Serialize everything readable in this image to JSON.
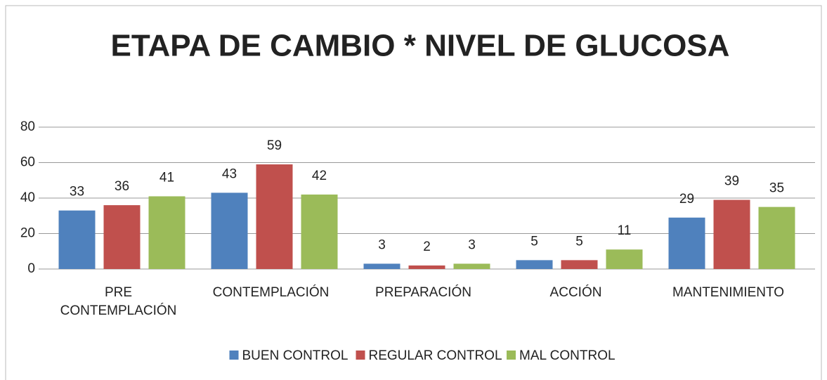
{
  "chart_data": {
    "type": "bar",
    "title": "ETAPA DE CAMBIO * NIVEL DE GLUCOSA",
    "categories": [
      "PRE CONTEMPLACIÓN",
      "CONTEMPLACIÓN",
      "PREPARACIÓN",
      "ACCIÓN",
      "MANTENIMIENTO"
    ],
    "series": [
      {
        "name": "BUEN CONTROL",
        "color": "#4f81bd",
        "values": [
          33,
          43,
          3,
          5,
          29
        ]
      },
      {
        "name": "REGULAR CONTROL",
        "color": "#c0504d",
        "values": [
          36,
          59,
          2,
          5,
          39
        ]
      },
      {
        "name": "MAL CONTROL",
        "color": "#9bbb59",
        "values": [
          41,
          42,
          3,
          11,
          35
        ]
      }
    ],
    "ylim": [
      0,
      80
    ],
    "yticks": [
      0,
      20,
      40,
      60,
      80
    ],
    "grid": true,
    "legend": "bottom"
  }
}
